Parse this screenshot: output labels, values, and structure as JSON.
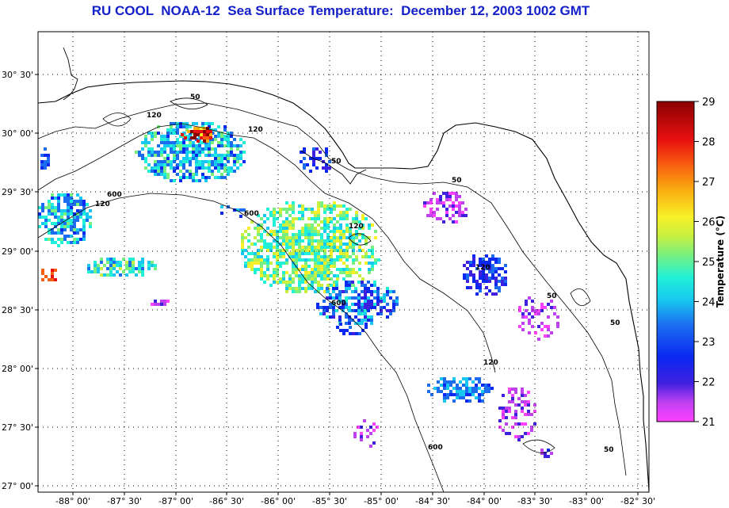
{
  "title": "RU COOL  NOAA-12  Sea Surface Temperature:  December 12, 2003 1002 GMT",
  "map": {
    "lat_ticks": [
      "30° 30'",
      "30° 00'",
      "29° 30'",
      "29° 00'",
      "28° 30'",
      "28° 00'",
      "27° 30'",
      "27° 00'"
    ],
    "lon_ticks": [
      "-88° 00'",
      "-87° 30'",
      "-87° 00'",
      "-86° 30'",
      "-86° 00'",
      "-85° 30'",
      "-85° 00'",
      "-84° 30'",
      "-84° 00'",
      "-83° 30'",
      "-83° 00'",
      "-82° 30'"
    ],
    "contour_labels": [
      "50",
      "120",
      "120",
      "50",
      "50",
      "120",
      "600",
      "120",
      "600",
      "600",
      "120",
      "50",
      "50",
      "120",
      "600",
      "50"
    ]
  },
  "colorbar": {
    "label": "Temperature (°C)",
    "min": 21,
    "max": 29,
    "ticks": [
      "29",
      "28",
      "27",
      "26",
      "25",
      "24",
      "23",
      "22",
      "21"
    ]
  }
}
